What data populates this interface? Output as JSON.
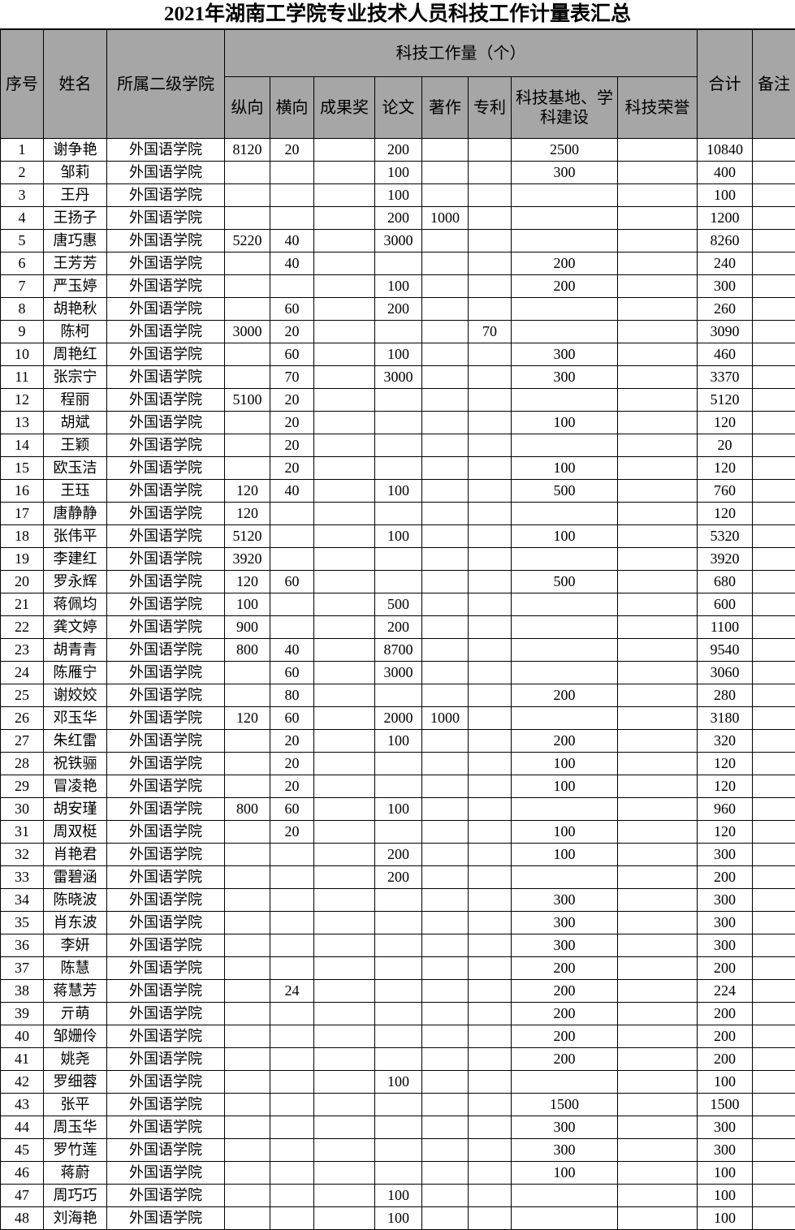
{
  "title": "2021年湖南工学院专业技术人员科技工作计量表汇总",
  "header": {
    "no": "序号",
    "name": "姓名",
    "college": "所属二级学院",
    "group": "科技工作量（个）",
    "sub": [
      "纵向",
      "横向",
      "成果奖",
      "论文",
      "著作",
      "专利",
      "科技基地、学科建设",
      "科技荣誉"
    ],
    "total": "合计",
    "note": "备注"
  },
  "header_bg": "#a6a6a6",
  "rows": [
    [
      "1",
      "谢争艳",
      "外国语学院",
      "8120",
      "20",
      "",
      "200",
      "",
      "",
      "2500",
      "",
      "10840",
      ""
    ],
    [
      "2",
      "邹莉",
      "外国语学院",
      "",
      "",
      "",
      "100",
      "",
      "",
      "300",
      "",
      "400",
      ""
    ],
    [
      "3",
      "王丹",
      "外国语学院",
      "",
      "",
      "",
      "100",
      "",
      "",
      "",
      "",
      "100",
      ""
    ],
    [
      "4",
      "王扬子",
      "外国语学院",
      "",
      "",
      "",
      "200",
      "1000",
      "",
      "",
      "",
      "1200",
      ""
    ],
    [
      "5",
      "唐巧惠",
      "外国语学院",
      "5220",
      "40",
      "",
      "3000",
      "",
      "",
      "",
      "",
      "8260",
      ""
    ],
    [
      "6",
      "王芳芳",
      "外国语学院",
      "",
      "40",
      "",
      "",
      "",
      "",
      "200",
      "",
      "240",
      ""
    ],
    [
      "7",
      "严玉婷",
      "外国语学院",
      "",
      "",
      "",
      "100",
      "",
      "",
      "200",
      "",
      "300",
      ""
    ],
    [
      "8",
      "胡艳秋",
      "外国语学院",
      "",
      "60",
      "",
      "200",
      "",
      "",
      "",
      "",
      "260",
      ""
    ],
    [
      "9",
      "陈柯",
      "外国语学院",
      "3000",
      "20",
      "",
      "",
      "",
      "70",
      "",
      "",
      "3090",
      ""
    ],
    [
      "10",
      "周艳红",
      "外国语学院",
      "",
      "60",
      "",
      "100",
      "",
      "",
      "300",
      "",
      "460",
      ""
    ],
    [
      "11",
      "张宗宁",
      "外国语学院",
      "",
      "70",
      "",
      "3000",
      "",
      "",
      "300",
      "",
      "3370",
      ""
    ],
    [
      "12",
      "程丽",
      "外国语学院",
      "5100",
      "20",
      "",
      "",
      "",
      "",
      "",
      "",
      "5120",
      ""
    ],
    [
      "13",
      "胡斌",
      "外国语学院",
      "",
      "20",
      "",
      "",
      "",
      "",
      "100",
      "",
      "120",
      ""
    ],
    [
      "14",
      "王颖",
      "外国语学院",
      "",
      "20",
      "",
      "",
      "",
      "",
      "",
      "",
      "20",
      ""
    ],
    [
      "15",
      "欧玉洁",
      "外国语学院",
      "",
      "20",
      "",
      "",
      "",
      "",
      "100",
      "",
      "120",
      ""
    ],
    [
      "16",
      "王珏",
      "外国语学院",
      "120",
      "40",
      "",
      "100",
      "",
      "",
      "500",
      "",
      "760",
      ""
    ],
    [
      "17",
      "唐静静",
      "外国语学院",
      "120",
      "",
      "",
      "",
      "",
      "",
      "",
      "",
      "120",
      ""
    ],
    [
      "18",
      "张伟平",
      "外国语学院",
      "5120",
      "",
      "",
      "100",
      "",
      "",
      "100",
      "",
      "5320",
      ""
    ],
    [
      "19",
      "李建红",
      "外国语学院",
      "3920",
      "",
      "",
      "",
      "",
      "",
      "",
      "",
      "3920",
      ""
    ],
    [
      "20",
      "罗永辉",
      "外国语学院",
      "120",
      "60",
      "",
      "",
      "",
      "",
      "500",
      "",
      "680",
      ""
    ],
    [
      "21",
      "蒋佩均",
      "外国语学院",
      "100",
      "",
      "",
      "500",
      "",
      "",
      "",
      "",
      "600",
      ""
    ],
    [
      "22",
      "龚文婷",
      "外国语学院",
      "900",
      "",
      "",
      "200",
      "",
      "",
      "",
      "",
      "1100",
      ""
    ],
    [
      "23",
      "胡青青",
      "外国语学院",
      "800",
      "40",
      "",
      "8700",
      "",
      "",
      "",
      "",
      "9540",
      ""
    ],
    [
      "24",
      "陈雁宁",
      "外国语学院",
      "",
      "60",
      "",
      "3000",
      "",
      "",
      "",
      "",
      "3060",
      ""
    ],
    [
      "25",
      "谢姣姣",
      "外国语学院",
      "",
      "80",
      "",
      "",
      "",
      "",
      "200",
      "",
      "280",
      ""
    ],
    [
      "26",
      "邓玉华",
      "外国语学院",
      "120",
      "60",
      "",
      "2000",
      "1000",
      "",
      "",
      "",
      "3180",
      ""
    ],
    [
      "27",
      "朱红雷",
      "外国语学院",
      "",
      "20",
      "",
      "100",
      "",
      "",
      "200",
      "",
      "320",
      ""
    ],
    [
      "28",
      "祝铁骊",
      "外国语学院",
      "",
      "20",
      "",
      "",
      "",
      "",
      "100",
      "",
      "120",
      ""
    ],
    [
      "29",
      "冒凌艳",
      "外国语学院",
      "",
      "20",
      "",
      "",
      "",
      "",
      "100",
      "",
      "120",
      ""
    ],
    [
      "30",
      "胡安瑾",
      "外国语学院",
      "800",
      "60",
      "",
      "100",
      "",
      "",
      "",
      "",
      "960",
      ""
    ],
    [
      "31",
      "周双梃",
      "外国语学院",
      "",
      "20",
      "",
      "",
      "",
      "",
      "100",
      "",
      "120",
      ""
    ],
    [
      "32",
      "肖艳君",
      "外国语学院",
      "",
      "",
      "",
      "200",
      "",
      "",
      "100",
      "",
      "300",
      ""
    ],
    [
      "33",
      "雷碧涵",
      "外国语学院",
      "",
      "",
      "",
      "200",
      "",
      "",
      "",
      "",
      "200",
      ""
    ],
    [
      "34",
      "陈晓波",
      "外国语学院",
      "",
      "",
      "",
      "",
      "",
      "",
      "300",
      "",
      "300",
      ""
    ],
    [
      "35",
      "肖东波",
      "外国语学院",
      "",
      "",
      "",
      "",
      "",
      "",
      "300",
      "",
      "300",
      ""
    ],
    [
      "36",
      "李妍",
      "外国语学院",
      "",
      "",
      "",
      "",
      "",
      "",
      "300",
      "",
      "300",
      ""
    ],
    [
      "37",
      "陈慧",
      "外国语学院",
      "",
      "",
      "",
      "",
      "",
      "",
      "200",
      "",
      "200",
      ""
    ],
    [
      "38",
      "蒋慧芳",
      "外国语学院",
      "",
      "24",
      "",
      "",
      "",
      "",
      "200",
      "",
      "224",
      ""
    ],
    [
      "39",
      "亓萌",
      "外国语学院",
      "",
      "",
      "",
      "",
      "",
      "",
      "200",
      "",
      "200",
      ""
    ],
    [
      "40",
      "邹姗伶",
      "外国语学院",
      "",
      "",
      "",
      "",
      "",
      "",
      "200",
      "",
      "200",
      ""
    ],
    [
      "41",
      "姚尧",
      "外国语学院",
      "",
      "",
      "",
      "",
      "",
      "",
      "200",
      "",
      "200",
      ""
    ],
    [
      "42",
      "罗细蓉",
      "外国语学院",
      "",
      "",
      "",
      "100",
      "",
      "",
      "",
      "",
      "100",
      ""
    ],
    [
      "43",
      "张平",
      "外国语学院",
      "",
      "",
      "",
      "",
      "",
      "",
      "1500",
      "",
      "1500",
      ""
    ],
    [
      "44",
      "周玉华",
      "外国语学院",
      "",
      "",
      "",
      "",
      "",
      "",
      "300",
      "",
      "300",
      ""
    ],
    [
      "45",
      "罗竹莲",
      "外国语学院",
      "",
      "",
      "",
      "",
      "",
      "",
      "300",
      "",
      "300",
      ""
    ],
    [
      "46",
      "蒋蔚",
      "外国语学院",
      "",
      "",
      "",
      "",
      "",
      "",
      "100",
      "",
      "100",
      ""
    ],
    [
      "47",
      "周巧巧",
      "外国语学院",
      "",
      "",
      "",
      "100",
      "",
      "",
      "",
      "",
      "100",
      ""
    ],
    [
      "48",
      "刘海艳",
      "外国语学院",
      "",
      "",
      "",
      "100",
      "",
      "",
      "",
      "",
      "100",
      ""
    ]
  ]
}
